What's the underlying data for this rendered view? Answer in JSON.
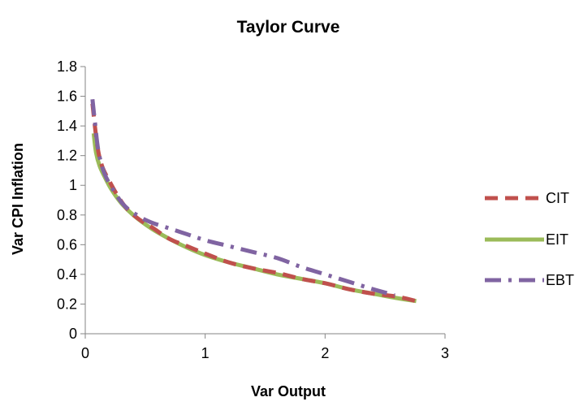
{
  "chart_data": {
    "type": "line",
    "title": "Taylor Curve",
    "xlabel": "Var Output",
    "ylabel": "Var CPI Inflation",
    "xlim": [
      0,
      3
    ],
    "ylim": [
      0,
      1.8
    ],
    "xticks": [
      0,
      1,
      2,
      3
    ],
    "yticks": [
      0,
      0.2,
      0.4,
      0.6,
      0.8,
      1,
      1.2,
      1.4,
      1.6,
      1.8
    ],
    "grid": false,
    "legend_position": "right",
    "series": [
      {
        "name": "CIT",
        "color": "#c0504d",
        "dash": "dashed",
        "points": [
          [
            0.06,
            1.55
          ],
          [
            0.1,
            1.27
          ],
          [
            0.14,
            1.13
          ],
          [
            0.2,
            1.03
          ],
          [
            0.27,
            0.93
          ],
          [
            0.35,
            0.84
          ],
          [
            0.45,
            0.77
          ],
          [
            0.55,
            0.72
          ],
          [
            0.7,
            0.64
          ],
          [
            0.85,
            0.59
          ],
          [
            1.0,
            0.54
          ],
          [
            1.2,
            0.48
          ],
          [
            1.4,
            0.44
          ],
          [
            1.6,
            0.41
          ],
          [
            1.8,
            0.37
          ],
          [
            2.0,
            0.34
          ],
          [
            2.2,
            0.3
          ],
          [
            2.4,
            0.27
          ],
          [
            2.6,
            0.25
          ],
          [
            2.76,
            0.22
          ]
        ]
      },
      {
        "name": "EIT",
        "color": "#9bbb59",
        "dash": "solid",
        "points": [
          [
            0.07,
            1.35
          ],
          [
            0.09,
            1.22
          ],
          [
            0.12,
            1.13
          ],
          [
            0.16,
            1.06
          ],
          [
            0.22,
            0.97
          ],
          [
            0.3,
            0.88
          ],
          [
            0.4,
            0.8
          ],
          [
            0.55,
            0.71
          ],
          [
            0.7,
            0.64
          ],
          [
            0.85,
            0.58
          ],
          [
            1.0,
            0.53
          ],
          [
            1.2,
            0.48
          ],
          [
            1.4,
            0.44
          ],
          [
            1.6,
            0.4
          ],
          [
            1.8,
            0.37
          ],
          [
            2.0,
            0.34
          ],
          [
            2.2,
            0.3
          ],
          [
            2.4,
            0.27
          ],
          [
            2.6,
            0.24
          ],
          [
            2.76,
            0.22
          ]
        ]
      },
      {
        "name": "EBT",
        "color": "#8064a2",
        "dash": "dashdot",
        "points": [
          [
            0.06,
            1.58
          ],
          [
            0.08,
            1.43
          ],
          [
            0.11,
            1.23
          ],
          [
            0.16,
            1.08
          ],
          [
            0.24,
            0.96
          ],
          [
            0.33,
            0.86
          ],
          [
            0.45,
            0.79
          ],
          [
            0.55,
            0.75
          ],
          [
            0.7,
            0.71
          ],
          [
            0.85,
            0.67
          ],
          [
            1.0,
            0.63
          ],
          [
            1.2,
            0.59
          ],
          [
            1.4,
            0.55
          ],
          [
            1.6,
            0.51
          ],
          [
            1.8,
            0.45
          ],
          [
            2.0,
            0.4
          ],
          [
            2.2,
            0.35
          ],
          [
            2.4,
            0.3
          ],
          [
            2.58,
            0.26
          ]
        ]
      }
    ]
  }
}
